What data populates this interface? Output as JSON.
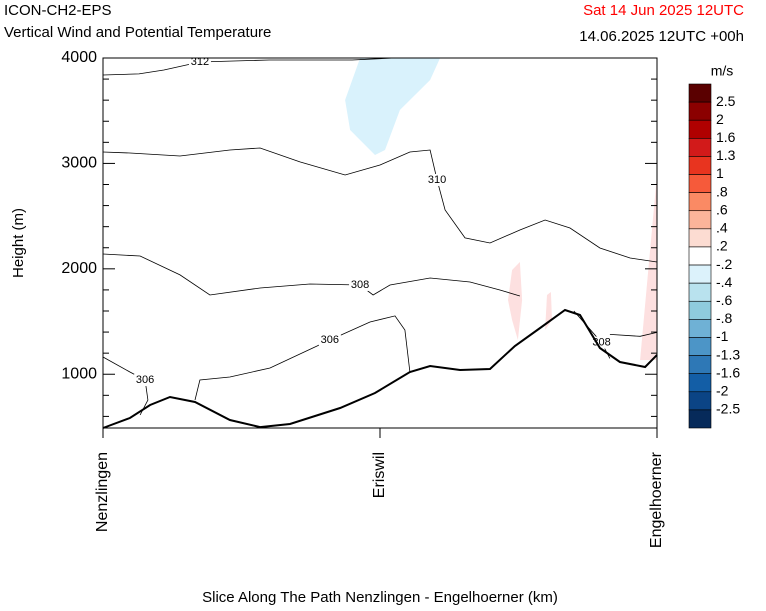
{
  "chart_data": {
    "type": "cross-section",
    "title": "ICON-CH2-EPS",
    "subtitle": "Vertical Wind and Potential Temperature",
    "date": "Sat 14 Jun 2025 12UTC",
    "date_color": "#ff0000",
    "valid": "14.06.2025 12UTC +00h",
    "ylabel": "Height (m)",
    "xlabel": "Slice Along The Path Nenzlingen - Engelhoerner (km)",
    "categories": [
      "Nenzlingen",
      "Eriswil",
      "Engelhoerner"
    ],
    "xlim": [
      0,
      2
    ],
    "ylim": [
      490,
      4000
    ],
    "yticks": [
      1000,
      2000,
      3000,
      4000
    ],
    "terrain": {
      "x": [
        0,
        0.097,
        0.17,
        0.242,
        0.332,
        0.458,
        0.567,
        0.675,
        0.856,
        0.982,
        1.108,
        1.181,
        1.289,
        1.397,
        1.487,
        1.578,
        1.668,
        1.722,
        1.794,
        1.866,
        1.957,
        2
      ],
      "values": [
        490,
        585,
        708,
        784,
        737,
        566,
        499,
        528,
        680,
        822,
        1021,
        1078,
        1040,
        1050,
        1268,
        1439,
        1609,
        1562,
        1249,
        1116,
        1069,
        1183
      ]
    },
    "contours": [
      {
        "label": "312",
        "x": [
          0,
          0.13,
          0.22,
          0.35,
          0.6,
          0.9,
          1.05
        ],
        "values": [
          3839,
          3849,
          3886,
          3962,
          3981,
          3981,
          4000
        ]
      },
      {
        "label": "310",
        "x": [
          0,
          0.097,
          0.278,
          0.458,
          0.567,
          0.711,
          0.874,
          1.0,
          1.108,
          1.181,
          1.206,
          1.235,
          1.307,
          1.397,
          1.505,
          1.596,
          1.686,
          1.794,
          1.903,
          2
        ],
        "values": [
          3108,
          3099,
          3070,
          3127,
          3146,
          3014,
          2890,
          2985,
          3108,
          3127,
          2843,
          2558,
          2293,
          2245,
          2368,
          2463,
          2387,
          2198,
          2103,
          2065
        ]
      },
      {
        "label": "308",
        "x": [
          0,
          0.134,
          0.278,
          0.386,
          0.567,
          0.747,
          0.928,
          0.975,
          1.036,
          1.181,
          1.325,
          1.433,
          1.505
        ],
        "values": [
          2141,
          2122,
          1942,
          1752,
          1818,
          1856,
          1847,
          1752,
          1847,
          1913,
          1875,
          1799,
          1742
        ]
      },
      {
        "label": "308",
        "x": [
          1.7,
          1.75,
          1.8,
          1.83
        ],
        "values": [
          1600,
          1450,
          1300,
          1150
        ]
      },
      {
        "x": [
          1.83,
          1.939,
          2
        ],
        "values": [
          1378,
          1360,
          1397
        ]
      },
      {
        "label": "306",
        "x": [
          0,
          0.097,
          0.152,
          0.162,
          0.134
        ],
        "values": [
          1164,
          1021,
          945,
          756,
          613
        ]
      },
      {
        "label": "306",
        "x": [
          0.332,
          0.35,
          0.458,
          0.603,
          0.819,
          0.964,
          1.054,
          1.09,
          1.108
        ],
        "values": [
          756,
          945,
          974,
          1059,
          1325,
          1496,
          1553,
          1420,
          1021
        ]
      }
    ],
    "shading": [
      {
        "color": "#d9f2fc",
        "x": [
          0.928,
          1.217,
          1.181,
          1.072,
          1.018,
          0.982,
          0.892,
          0.874
        ],
        "values": [
          4000,
          4000,
          3791,
          3507,
          3127,
          3080,
          3317,
          3602
        ]
      },
      {
        "color": "#fde0e0",
        "x": [
          1.462,
          1.477,
          1.505,
          1.513,
          1.498,
          1.477
        ],
        "values": [
          1704,
          1989,
          2065,
          1704,
          1325,
          1515
        ]
      },
      {
        "color": "#fde0e0",
        "x": [
          1.596,
          1.603,
          1.617,
          1.621
        ],
        "values": [
          1420,
          1752,
          1780,
          1515
        ]
      },
      {
        "color": "#fde0e0",
        "x": [
          1.939,
          1.975,
          2,
          2
        ],
        "values": [
          1135,
          2179,
          2890,
          1135
        ]
      }
    ],
    "colorbar": {
      "unit": "m/s",
      "ticks": [
        2.5,
        2,
        1.6,
        1.3,
        1,
        {
          "value": 0.8,
          "label": ".8"
        },
        {
          "value": 0.6,
          "label": ".6"
        },
        {
          "value": 0.4,
          "label": ".4"
        },
        {
          "value": 0.2,
          "label": ".2"
        },
        {
          "value": -0.2,
          "label": "-.2"
        },
        {
          "value": -0.4,
          "label": "-.4"
        },
        {
          "value": -0.6,
          "label": "-.6"
        },
        {
          "value": -0.8,
          "label": "-.8"
        },
        -1,
        -1.3,
        -1.6,
        -2,
        -2.5
      ],
      "colors": [
        "#5a0000",
        "#8b0000",
        "#b00000",
        "#d21a1a",
        "#e8341f",
        "#f65a3a",
        "#fa8a64",
        "#fbb49a",
        "#fcdcd2",
        "#ffffff",
        "#dcf2fb",
        "#b9e2ee",
        "#8fcbdd",
        "#6fb1d5",
        "#4c95c7",
        "#2e78b6",
        "#135ea6",
        "#0b4485",
        "#062a5a"
      ]
    }
  }
}
